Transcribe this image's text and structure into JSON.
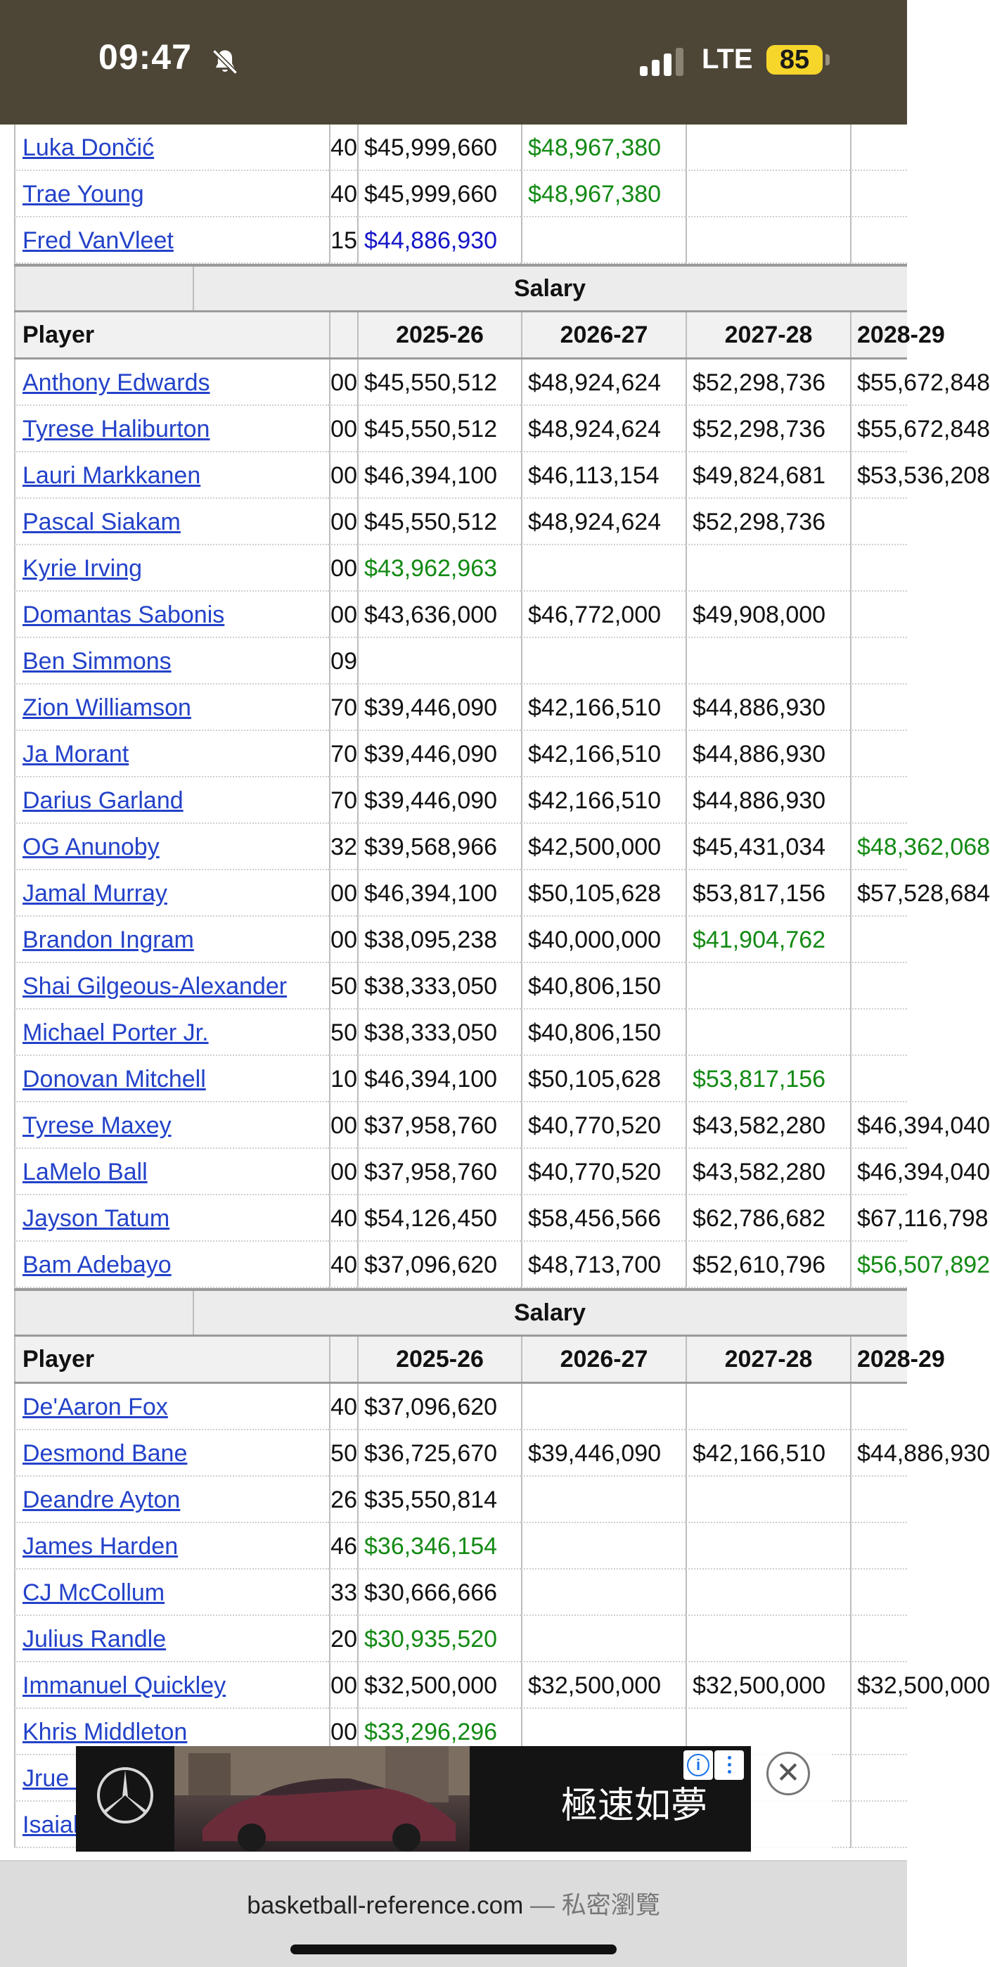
{
  "status_bar": {
    "time": "09:47",
    "network": "LTE",
    "battery": "85"
  },
  "table_top_rows": [
    {
      "player": "Luka Dončić",
      "prev": "40",
      "y1": "$45,999,660",
      "y1_color": "black",
      "y2": "$48,967,380",
      "y2_color": "green",
      "y3": "",
      "y3_color": "black",
      "y4": "",
      "y4_color": "black"
    },
    {
      "player": "Trae Young",
      "prev": "40",
      "y1": "$45,999,660",
      "y1_color": "black",
      "y2": "$48,967,380",
      "y2_color": "green",
      "y3": "",
      "y3_color": "black",
      "y4": "",
      "y4_color": "black"
    },
    {
      "player": "Fred VanVleet",
      "prev": "15",
      "y1": "$44,886,930",
      "y1_color": "blue",
      "y2": "",
      "y2_color": "black",
      "y3": "",
      "y3_color": "black",
      "y4": "",
      "y4_color": "black"
    }
  ],
  "section1": {
    "overhead": "Salary",
    "headers": {
      "player": "Player",
      "y1": "2025-26",
      "y2": "2026-27",
      "y3": "2027-28",
      "y4": "2028-29"
    },
    "rows": [
      {
        "player": "Anthony Edwards",
        "prev": "00",
        "y1": "$45,550,512",
        "y1_color": "black",
        "y2": "$48,924,624",
        "y2_color": "black",
        "y3": "$52,298,736",
        "y3_color": "black",
        "y4": "$55,672,848",
        "y4_color": "black"
      },
      {
        "player": "Tyrese Haliburton",
        "prev": "00",
        "y1": "$45,550,512",
        "y1_color": "black",
        "y2": "$48,924,624",
        "y2_color": "black",
        "y3": "$52,298,736",
        "y3_color": "black",
        "y4": "$55,672,848",
        "y4_color": "black"
      },
      {
        "player": "Lauri Markkanen",
        "prev": "00",
        "y1": "$46,394,100",
        "y1_color": "black",
        "y2": "$46,113,154",
        "y2_color": "black",
        "y3": "$49,824,681",
        "y3_color": "black",
        "y4": "$53,536,208",
        "y4_color": "black"
      },
      {
        "player": "Pascal Siakam",
        "prev": "00",
        "y1": "$45,550,512",
        "y1_color": "black",
        "y2": "$48,924,624",
        "y2_color": "black",
        "y3": "$52,298,736",
        "y3_color": "black",
        "y4": "",
        "y4_color": "black"
      },
      {
        "player": "Kyrie Irving",
        "prev": "00",
        "y1": "$43,962,963",
        "y1_color": "green",
        "y2": "",
        "y2_color": "black",
        "y3": "",
        "y3_color": "black",
        "y4": "",
        "y4_color": "black"
      },
      {
        "player": "Domantas Sabonis",
        "prev": "00",
        "y1": "$43,636,000",
        "y1_color": "black",
        "y2": "$46,772,000",
        "y2_color": "black",
        "y3": "$49,908,000",
        "y3_color": "black",
        "y4": "",
        "y4_color": "black"
      },
      {
        "player": "Ben Simmons",
        "prev": "09",
        "y1": "",
        "y1_color": "black",
        "y2": "",
        "y2_color": "black",
        "y3": "",
        "y3_color": "black",
        "y4": "",
        "y4_color": "black"
      },
      {
        "player": "Zion Williamson",
        "prev": "70",
        "y1": "$39,446,090",
        "y1_color": "black",
        "y2": "$42,166,510",
        "y2_color": "black",
        "y3": "$44,886,930",
        "y3_color": "black",
        "y4": "",
        "y4_color": "black"
      },
      {
        "player": "Ja Morant",
        "prev": "70",
        "y1": "$39,446,090",
        "y1_color": "black",
        "y2": "$42,166,510",
        "y2_color": "black",
        "y3": "$44,886,930",
        "y3_color": "black",
        "y4": "",
        "y4_color": "black"
      },
      {
        "player": "Darius Garland",
        "prev": "70",
        "y1": "$39,446,090",
        "y1_color": "black",
        "y2": "$42,166,510",
        "y2_color": "black",
        "y3": "$44,886,930",
        "y3_color": "black",
        "y4": "",
        "y4_color": "black"
      },
      {
        "player": "OG Anunoby",
        "prev": "32",
        "y1": "$39,568,966",
        "y1_color": "black",
        "y2": "$42,500,000",
        "y2_color": "black",
        "y3": "$45,431,034",
        "y3_color": "black",
        "y4": "$48,362,068",
        "y4_color": "green"
      },
      {
        "player": "Jamal Murray",
        "prev": "00",
        "y1": "$46,394,100",
        "y1_color": "black",
        "y2": "$50,105,628",
        "y2_color": "black",
        "y3": "$53,817,156",
        "y3_color": "black",
        "y4": "$57,528,684",
        "y4_color": "black"
      },
      {
        "player": "Brandon Ingram",
        "prev": "00",
        "y1": "$38,095,238",
        "y1_color": "black",
        "y2": "$40,000,000",
        "y2_color": "black",
        "y3": "$41,904,762",
        "y3_color": "green",
        "y4": "",
        "y4_color": "black"
      },
      {
        "player": "Shai Gilgeous-Alexander",
        "prev": "50",
        "y1": "$38,333,050",
        "y1_color": "black",
        "y2": "$40,806,150",
        "y2_color": "black",
        "y3": "",
        "y3_color": "black",
        "y4": "",
        "y4_color": "black"
      },
      {
        "player": "Michael Porter Jr.",
        "prev": "50",
        "y1": "$38,333,050",
        "y1_color": "black",
        "y2": "$40,806,150",
        "y2_color": "black",
        "y3": "",
        "y3_color": "black",
        "y4": "",
        "y4_color": "black"
      },
      {
        "player": "Donovan Mitchell",
        "prev": "10",
        "y1": "$46,394,100",
        "y1_color": "black",
        "y2": "$50,105,628",
        "y2_color": "black",
        "y3": "$53,817,156",
        "y3_color": "green",
        "y4": "",
        "y4_color": "black"
      },
      {
        "player": "Tyrese Maxey",
        "prev": "00",
        "y1": "$37,958,760",
        "y1_color": "black",
        "y2": "$40,770,520",
        "y2_color": "black",
        "y3": "$43,582,280",
        "y3_color": "black",
        "y4": "$46,394,040",
        "y4_color": "black"
      },
      {
        "player": "LaMelo Ball",
        "prev": "00",
        "y1": "$37,958,760",
        "y1_color": "black",
        "y2": "$40,770,520",
        "y2_color": "black",
        "y3": "$43,582,280",
        "y3_color": "black",
        "y4": "$46,394,040",
        "y4_color": "black"
      },
      {
        "player": "Jayson Tatum",
        "prev": "40",
        "y1": "$54,126,450",
        "y1_color": "black",
        "y2": "$58,456,566",
        "y2_color": "black",
        "y3": "$62,786,682",
        "y3_color": "black",
        "y4": "$67,116,798",
        "y4_color": "black"
      },
      {
        "player": "Bam Adebayo",
        "prev": "40",
        "y1": "$37,096,620",
        "y1_color": "black",
        "y2": "$48,713,700",
        "y2_color": "black",
        "y3": "$52,610,796",
        "y3_color": "black",
        "y4": "$56,507,892",
        "y4_color": "green"
      }
    ]
  },
  "section2": {
    "overhead": "Salary",
    "headers": {
      "player": "Player",
      "y1": "2025-26",
      "y2": "2026-27",
      "y3": "2027-28",
      "y4": "2028-29"
    },
    "rows": [
      {
        "player": "De'Aaron Fox",
        "prev": "40",
        "y1": "$37,096,620",
        "y1_color": "black",
        "y2": "",
        "y2_color": "black",
        "y3": "",
        "y3_color": "black",
        "y4": "",
        "y4_color": "black"
      },
      {
        "player": "Desmond Bane",
        "prev": "50",
        "y1": "$36,725,670",
        "y1_color": "black",
        "y2": "$39,446,090",
        "y2_color": "black",
        "y3": "$42,166,510",
        "y3_color": "black",
        "y4": "$44,886,930",
        "y4_color": "black"
      },
      {
        "player": "Deandre Ayton",
        "prev": "26",
        "y1": "$35,550,814",
        "y1_color": "black",
        "y2": "",
        "y2_color": "black",
        "y3": "",
        "y3_color": "black",
        "y4": "",
        "y4_color": "black"
      },
      {
        "player": "James Harden",
        "prev": "46",
        "y1": "$36,346,154",
        "y1_color": "green",
        "y2": "",
        "y2_color": "black",
        "y3": "",
        "y3_color": "black",
        "y4": "",
        "y4_color": "black"
      },
      {
        "player": "CJ McCollum",
        "prev": "33",
        "y1": "$30,666,666",
        "y1_color": "black",
        "y2": "",
        "y2_color": "black",
        "y3": "",
        "y3_color": "black",
        "y4": "",
        "y4_color": "black"
      },
      {
        "player": "Julius Randle",
        "prev": "20",
        "y1": "$30,935,520",
        "y1_color": "green",
        "y2": "",
        "y2_color": "black",
        "y3": "",
        "y3_color": "black",
        "y4": "",
        "y4_color": "black"
      },
      {
        "player": "Immanuel Quickley",
        "prev": "00",
        "y1": "$32,500,000",
        "y1_color": "black",
        "y2": "$32,500,000",
        "y2_color": "black",
        "y3": "$32,500,000",
        "y3_color": "black",
        "y4": "$32,500,000",
        "y4_color": "black"
      },
      {
        "player": "Khris Middleton",
        "prev": "00",
        "y1": "$33,296,296",
        "y1_color": "green",
        "y2": "",
        "y2_color": "black",
        "y3": "",
        "y3_color": "black",
        "y4": "",
        "y4_color": "black"
      },
      {
        "player": "Jrue Holiday",
        "prev": "",
        "y1": "",
        "y1_color": "black",
        "y2": "",
        "y2_color": "black",
        "y3": "",
        "y3_color": "green",
        "y4": "",
        "y4_color": "black"
      },
      {
        "player": "Isaiah",
        "prev": "",
        "y1": "",
        "y1_color": "black",
        "y2": "",
        "y2_color": "black",
        "y3": "",
        "y3_color": "black",
        "y4": "",
        "y4_color": "black"
      }
    ]
  },
  "ad": {
    "text": "極速如夢",
    "info_icon": "i",
    "close_icon": "✕"
  },
  "browser": {
    "url": "basketball-reference.com",
    "separator": "—",
    "mode": "私密瀏覽"
  }
}
